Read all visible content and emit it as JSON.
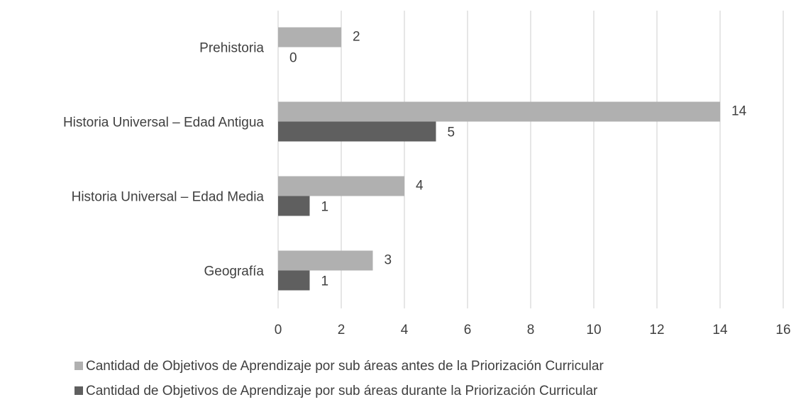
{
  "chart_data": {
    "type": "bar",
    "orientation": "horizontal",
    "categories": [
      "Prehistoria",
      "Historia Universal – Edad Antigua",
      "Historia Universal – Edad Media",
      "Geografía"
    ],
    "series": [
      {
        "name": "Cantidad de Objetivos de Aprendizaje por sub áreas antes de la Priorización Curricular",
        "color": "#b0b0b0",
        "values": [
          2,
          14,
          4,
          3
        ]
      },
      {
        "name": "Cantidad de Objetivos de Aprendizaje por sub áreas durante la Priorización Curricular",
        "color": "#5f5f5f",
        "values": [
          0,
          5,
          1,
          1
        ]
      }
    ],
    "xlim": [
      0,
      16
    ],
    "xticks": [
      0,
      2,
      4,
      6,
      8,
      10,
      12,
      14,
      16
    ],
    "grid": true,
    "legend": "bottom"
  }
}
